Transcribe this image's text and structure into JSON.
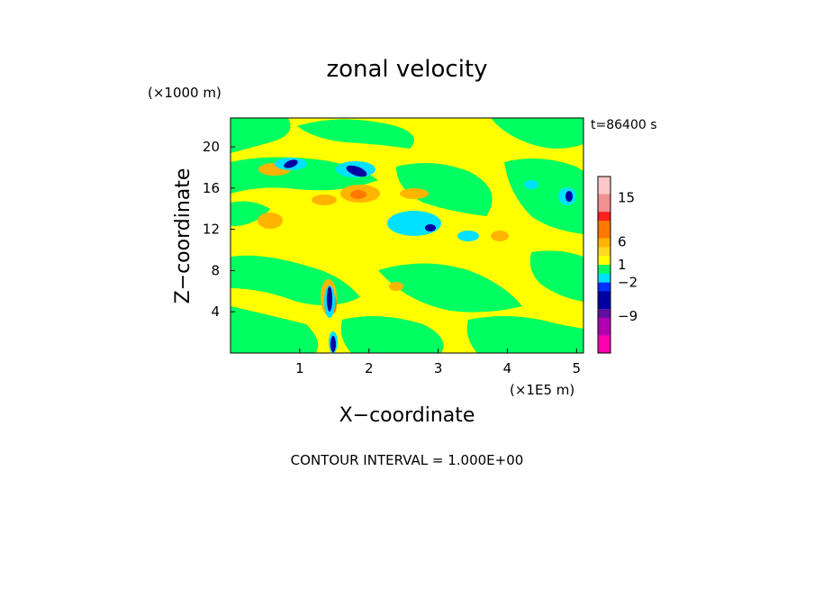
{
  "chart_data": {
    "type": "heatmap",
    "title": "zonal velocity",
    "xlabel": "X−coordinate",
    "ylabel": "Z−coordinate",
    "x_unit": "(×1E5 m)",
    "z_unit": "(×1000 m)",
    "time_label": "t=86400 s",
    "footer": "CONTOUR INTERVAL = 1.000E+00",
    "xlim": [
      0,
      5.1
    ],
    "ylim": [
      0,
      22.8
    ],
    "x_ticks": [
      "1",
      "2",
      "3",
      "4",
      "5"
    ],
    "y_ticks": [
      "4",
      "8",
      "12",
      "16",
      "20"
    ],
    "colorbar": {
      "levels": [
        {
          "color": "#FFC8C8"
        },
        {
          "color": "#FFC8C8"
        },
        {
          "color": "#F09090"
        },
        {
          "color": "#F09090"
        },
        {
          "color": "#FF2020"
        },
        {
          "color": "#FF7800"
        },
        {
          "color": "#FF7800"
        },
        {
          "color": "#FFB400"
        },
        {
          "color": "#FFD820"
        },
        {
          "color": "#FFFF00"
        },
        {
          "color": "#00FF60"
        },
        {
          "color": "#00E0FF"
        },
        {
          "color": "#0030FF"
        },
        {
          "color": "#0000A0"
        },
        {
          "color": "#0000A0"
        },
        {
          "color": "#6010A0"
        },
        {
          "color": "#B000B0"
        },
        {
          "color": "#B000B0"
        },
        {
          "color": "#FF00B0"
        },
        {
          "color": "#FF00B0"
        }
      ],
      "labels": [
        "15",
        "6",
        "1",
        "−2",
        "−9"
      ]
    },
    "dominant_colors": {
      "weak_positive": "#FFFF00",
      "weak_negative": "#00FF60",
      "moderate_positive": "#FFD820",
      "moderate_negative": "#00E0FF",
      "strong_negative": "#0000A0"
    }
  }
}
